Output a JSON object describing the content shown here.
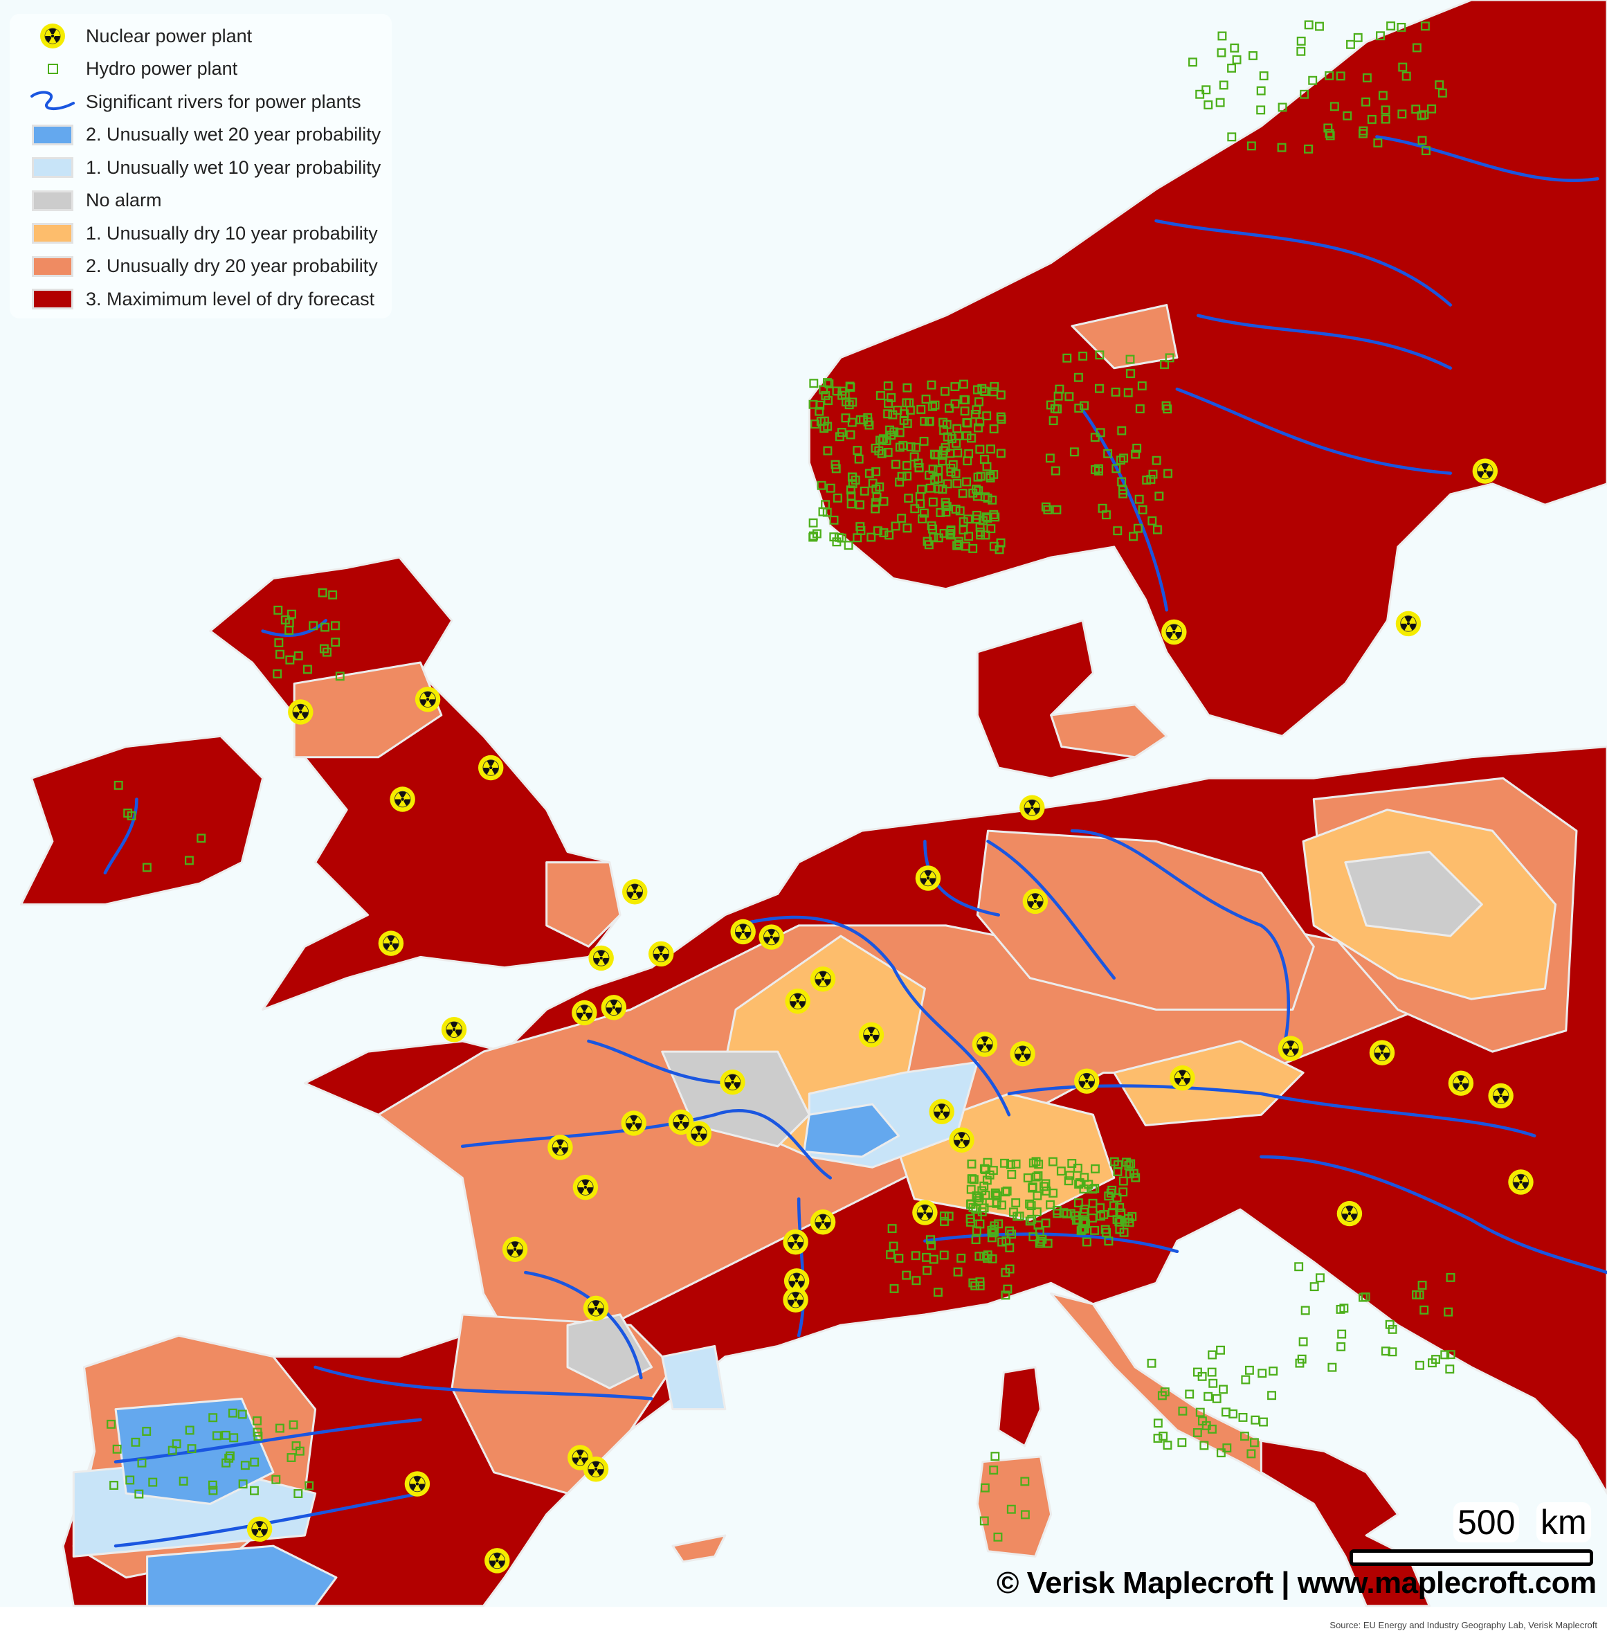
{
  "legend": {
    "items": [
      {
        "symbol": "nuclear-icon",
        "label": "Nuclear power plant"
      },
      {
        "symbol": "hydro-square",
        "label": "Hydro power plant",
        "color": "#4caf1a"
      },
      {
        "symbol": "river-line",
        "label": "Significant rivers for power plants",
        "color": "#1a56e0"
      },
      {
        "symbol": "swatch",
        "label": "2. Unusually wet  20 year probability",
        "color": "#64a8ee"
      },
      {
        "symbol": "swatch",
        "label": "1. Unusually wet 10 year probability",
        "color": "#c8e4f8"
      },
      {
        "symbol": "swatch",
        "label": "No alarm",
        "color": "#cccccc"
      },
      {
        "symbol": "swatch",
        "label": "1. Unusually dry 10 year probability",
        "color": "#fdbd6c"
      },
      {
        "symbol": "swatch",
        "label": "2. Unusually dry  20 year probability",
        "color": "#ef8b62"
      },
      {
        "symbol": "swatch",
        "label": "3. Maximimum level of dry forecast",
        "color": "#b20000"
      }
    ]
  },
  "colors": {
    "sea": "#f3fbfd",
    "border": "#e6e6e6",
    "nuclear_fill": "#f5ec00"
  },
  "scale": {
    "value": "500",
    "unit": "km"
  },
  "copyright": "© Verisk Maplecroft  | www.maplecroft.com",
  "source": "Source: EU Energy and Industry Geography Lab, Verisk Maplecroft"
}
